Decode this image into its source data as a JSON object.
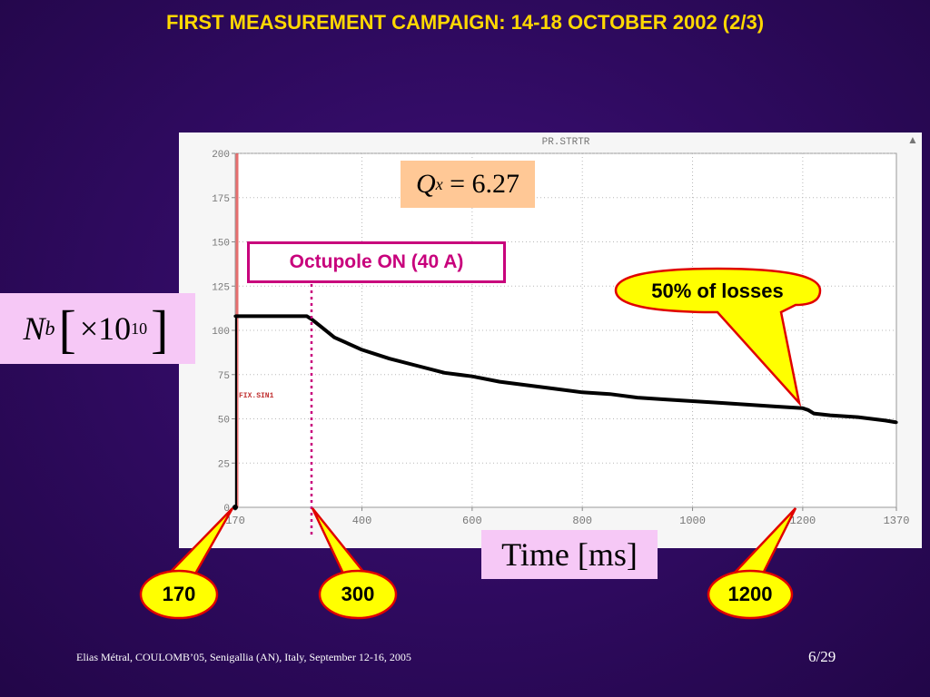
{
  "slide": {
    "title": "FIRST MEASUREMENT CAMPAIGN: 14-18 OCTOBER 2002 (2/3)",
    "footer": "Elias Métral, COULOMB’05, Senigallia (AN), Italy, September 12-16, 2005",
    "page": "6/29"
  },
  "colors": {
    "title": "#ffd800",
    "callout_fill": "#ffff00",
    "callout_stroke": "#e00000",
    "octupole": "#c8007c",
    "curve": "#000000"
  },
  "annotations": {
    "qx_symbol": "Q",
    "qx_sub": "x",
    "qx_value": "= 6.27",
    "ylabel_symbol": "N",
    "ylabel_sub": "b",
    "ylabel_times": "×10",
    "ylabel_exp": "10",
    "xlabel": "Time [ms]",
    "octupole": "Octupole ON (40 A)",
    "losses": "50% of losses",
    "marker_170": "170",
    "marker_300": "300",
    "marker_1200": "1200"
  },
  "chart_data": {
    "type": "line",
    "title": "PR.STRTR",
    "inset_label": "FIX.SIN1",
    "xlabel": "Time [ms]",
    "ylabel": "N_b [×10^10]",
    "xlim": [
      170,
      1370
    ],
    "ylim": [
      0,
      200
    ],
    "x_ticks": [
      170,
      400,
      600,
      800,
      1000,
      1200,
      1370
    ],
    "y_ticks": [
      0,
      25,
      50,
      75,
      100,
      125,
      150,
      175,
      200
    ],
    "grid": true,
    "series": [
      {
        "x": [
          170,
          200,
          250,
          300,
          310,
          330,
          350,
          400,
          450,
          500,
          550,
          600,
          650,
          700,
          750,
          800,
          850,
          900,
          950,
          1000,
          1050,
          1100,
          1150,
          1200,
          1210,
          1220,
          1250,
          1300,
          1350,
          1370
        ],
        "y": [
          108,
          108,
          108,
          108,
          106,
          101,
          96,
          89,
          84,
          80,
          76,
          74,
          71,
          69,
          67,
          65,
          64,
          62,
          61,
          60,
          59,
          58,
          57,
          56,
          55,
          53,
          52,
          51,
          49,
          48
        ]
      }
    ],
    "markers_x": [
      170,
      300,
      1200
    ]
  }
}
